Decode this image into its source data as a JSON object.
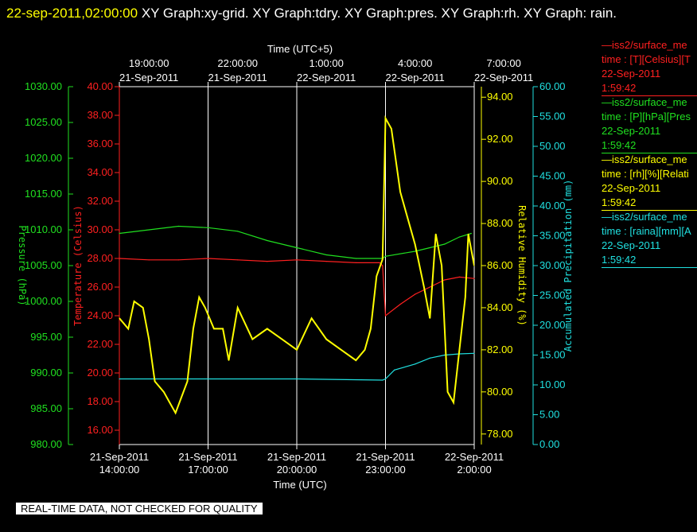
{
  "title": {
    "timestamp": "22-sep-2011,02:00:00",
    "text": " XY Graph:xy-grid.  XY Graph:tdry.  XY Graph:pres.  XY Graph:rh.  XY Graph: rain."
  },
  "footer": "REAL-TIME DATA, NOT CHECKED FOR QUALITY",
  "legend": [
    {
      "line1": "—iss2/surface_me",
      "line2": "time : [T][Celsius][T",
      "line3": "22-Sep-2011",
      "line4": "1:59:42",
      "color": "#ff2020"
    },
    {
      "line1": "—iss2/surface_me",
      "line2": "time : [P][hPa][Pres",
      "line3": "22-Sep-2011",
      "line4": "1:59:42",
      "color": "#20e020"
    },
    {
      "line1": "—iss2/surface_me",
      "line2": "time : [rh][%][Relati",
      "line3": "22-Sep-2011",
      "line4": "1:59:42",
      "color": "#ffff00"
    },
    {
      "line1": "—iss2/surface_me",
      "line2": "time : [raina][mm][A",
      "line3": "22-Sep-2011",
      "line4": "1:59:42",
      "color": "#20e0e0"
    }
  ],
  "chart_data": {
    "type": "line",
    "top_axis": {
      "title": "Time (UTC+5)",
      "ticks": [
        {
          "time": "19:00:00",
          "date": "21-Sep-2011"
        },
        {
          "time": "22:00:00",
          "date": "21-Sep-2011"
        },
        {
          "time": "1:00:00",
          "date": "22-Sep-2011"
        },
        {
          "time": "4:00:00",
          "date": "22-Sep-2011"
        },
        {
          "time": "7:00:00",
          "date": "22-Sep-2011"
        }
      ]
    },
    "bottom_axis": {
      "title": "Time (UTC)",
      "ticks": [
        {
          "date": "21-Sep-2011",
          "time": "14:00:00"
        },
        {
          "date": "21-Sep-2011",
          "time": "17:00:00"
        },
        {
          "date": "21-Sep-2011",
          "time": "20:00:00"
        },
        {
          "date": "21-Sep-2011",
          "time": "23:00:00"
        },
        {
          "date": "22-Sep-2011",
          "time": "2:00:00"
        }
      ],
      "range": [
        "2011-09-21 14:00",
        "2011-09-22 02:00"
      ]
    },
    "axes": {
      "pressure": {
        "label": "Pressure (hPa)",
        "color": "#20e020",
        "min": 980,
        "max": 1030,
        "ticks": [
          "980.00",
          "985.00",
          "990.00",
          "995.00",
          "1000.00",
          "1005.00",
          "1010.00",
          "1015.00",
          "1020.00",
          "1025.00",
          "1030.00"
        ]
      },
      "temperature": {
        "label": "Temperature (Celsius)",
        "color": "#ff2020",
        "min": 15,
        "max": 40,
        "ticks": [
          "16.00",
          "18.00",
          "20.00",
          "22.00",
          "24.00",
          "26.00",
          "28.00",
          "30.00",
          "32.00",
          "34.00",
          "36.00",
          "38.00",
          "40.00"
        ]
      },
      "rh": {
        "label": "Relative Humidity (%)",
        "color": "#ffff00",
        "min": 77.5,
        "max": 94.5,
        "ticks": [
          "78.00",
          "80.00",
          "82.00",
          "84.00",
          "86.00",
          "88.00",
          "90.00",
          "92.00",
          "94.00"
        ]
      },
      "rain": {
        "label": "Accumulated Precipitation (mm)",
        "color": "#20e0e0",
        "min": 0,
        "max": 60,
        "ticks": [
          "0.00",
          "5.00",
          "10.00",
          "15.00",
          "20.00",
          "25.00",
          "30.00",
          "35.00",
          "40.00",
          "45.00",
          "50.00",
          "55.00",
          "60.00"
        ]
      }
    },
    "series": [
      {
        "name": "iss2/surface_me time : [P][hPa][Pres",
        "axis": "pressure",
        "x": [
          14.0,
          15.0,
          16.0,
          17.0,
          18.0,
          19.0,
          20.0,
          21.0,
          22.0,
          22.9,
          23.0,
          24.0,
          25.0,
          25.5,
          25.9
        ],
        "y": [
          1009.5,
          1010.0,
          1010.5,
          1010.3,
          1009.8,
          1008.5,
          1007.5,
          1006.5,
          1006.0,
          1006.0,
          1006.3,
          1007.0,
          1008.0,
          1009.0,
          1009.5
        ]
      },
      {
        "name": "iss2/surface_me time : [T][Celsius][T",
        "axis": "temperature",
        "x": [
          14.0,
          15.0,
          16.0,
          17.0,
          18.0,
          19.0,
          20.0,
          21.0,
          22.0,
          22.8,
          22.9,
          23.0,
          23.5,
          24.0,
          24.5,
          25.0,
          25.5,
          26.0
        ],
        "y": [
          28.0,
          27.9,
          27.9,
          28.0,
          27.9,
          27.8,
          27.9,
          27.8,
          27.7,
          27.7,
          27.5,
          24.0,
          24.8,
          25.5,
          26.0,
          26.5,
          26.7,
          26.6
        ]
      },
      {
        "name": "iss2/surface_me time : [rh][%][Relati",
        "axis": "rh",
        "x": [
          14.0,
          14.3,
          14.5,
          14.8,
          15.0,
          15.2,
          15.5,
          15.7,
          15.9,
          16.3,
          16.5,
          16.7,
          16.9,
          17.2,
          17.5,
          17.7,
          18.0,
          18.5,
          19.0,
          19.5,
          20.0,
          20.5,
          21.0,
          21.5,
          22.0,
          22.3,
          22.5,
          22.7,
          22.9,
          23.0,
          23.2,
          23.5,
          23.7,
          24.0,
          24.3,
          24.5,
          24.7,
          24.9,
          25.1,
          25.3,
          25.5,
          25.7,
          25.8,
          26.0
        ],
        "x_dummy": [],
        "y": [
          83.5,
          83.0,
          84.3,
          84.0,
          82.5,
          80.5,
          80.0,
          79.5,
          79.0,
          80.5,
          83.0,
          84.5,
          84.0,
          83.0,
          83.0,
          81.5,
          84.0,
          82.5,
          83.0,
          82.5,
          82.0,
          83.5,
          82.5,
          82.0,
          81.5,
          82.0,
          83.0,
          85.5,
          86.3,
          93.0,
          92.5,
          89.5,
          88.5,
          87.0,
          85.0,
          83.5,
          87.5,
          86.0,
          80.0,
          79.5,
          82.0,
          84.5,
          87.5,
          86.0
        ]
      },
      {
        "name": "iss2/surface_me time : [raina][mm][A",
        "axis": "rain",
        "x": [
          14.0,
          17.0,
          20.0,
          22.9,
          23.0,
          23.3,
          24.0,
          24.5,
          25.0,
          25.5,
          26.0
        ],
        "y": [
          11.0,
          11.0,
          11.0,
          10.8,
          11.0,
          12.5,
          13.5,
          14.5,
          15.0,
          15.2,
          15.3
        ]
      }
    ]
  }
}
